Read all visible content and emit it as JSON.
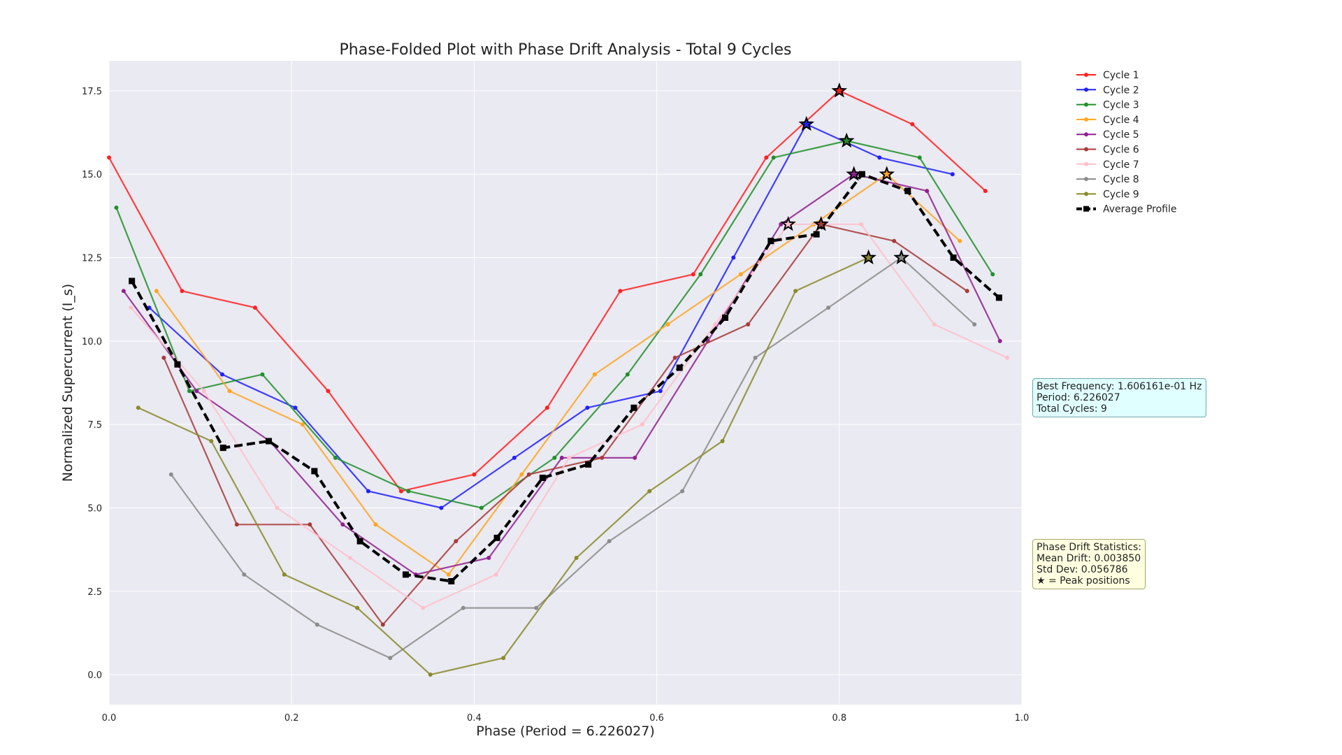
{
  "chart_data": {
    "type": "line",
    "title": "Phase-Folded Plot with Phase Drift Analysis - Total 9 Cycles",
    "xlabel": "Phase (Period = 6.226027)",
    "ylabel": "Normalized Supercurrent (I_s)",
    "xlim": [
      0,
      1
    ],
    "ylim": [
      -0.9,
      18.4
    ],
    "xticks": [
      0.0,
      0.2,
      0.4,
      0.6,
      0.8,
      1.0
    ],
    "xtick_labels": [
      "0.0",
      "0.2",
      "0.4",
      "0.6",
      "0.8",
      "1.0"
    ],
    "yticks": [
      0.0,
      2.5,
      5.0,
      7.5,
      10.0,
      12.5,
      15.0,
      17.5
    ],
    "ytick_labels": [
      "0.0",
      "2.5",
      "5.0",
      "7.5",
      "10.0",
      "12.5",
      "15.0",
      "17.5"
    ],
    "grid": true,
    "legend_position": "outside-top-right",
    "series": [
      {
        "name": "Cycle 1",
        "color": "#ff2020",
        "x": [
          0.0,
          0.08,
          0.16,
          0.24,
          0.32,
          0.4,
          0.48,
          0.56,
          0.64,
          0.72,
          0.8,
          0.88,
          0.96
        ],
        "y": [
          15.5,
          11.5,
          11.0,
          8.5,
          5.5,
          6.0,
          8.0,
          11.5,
          12.0,
          15.5,
          17.5,
          16.5,
          14.5
        ],
        "peak": [
          0.8,
          17.5
        ]
      },
      {
        "name": "Cycle 2",
        "color": "#2020ff",
        "x": [
          0.044,
          0.124,
          0.204,
          0.284,
          0.364,
          0.444,
          0.524,
          0.604,
          0.684,
          0.764,
          0.844,
          0.924
        ],
        "y": [
          11.0,
          9.0,
          8.0,
          5.5,
          5.0,
          6.5,
          8.0,
          8.5,
          12.5,
          16.5,
          15.5,
          15.0
        ],
        "peak": [
          0.764,
          16.5
        ]
      },
      {
        "name": "Cycle 3",
        "color": "#20902a",
        "x": [
          0.008,
          0.088,
          0.168,
          0.248,
          0.328,
          0.408,
          0.488,
          0.568,
          0.648,
          0.728,
          0.808,
          0.888,
          0.968
        ],
        "y": [
          14.0,
          8.5,
          9.0,
          6.5,
          5.5,
          5.0,
          6.5,
          9.0,
          12.0,
          15.5,
          16.0,
          15.5,
          12.0
        ],
        "peak": [
          0.808,
          16.0
        ]
      },
      {
        "name": "Cycle 4",
        "color": "#ffa520",
        "x": [
          0.052,
          0.132,
          0.212,
          0.292,
          0.372,
          0.452,
          0.532,
          0.612,
          0.692,
          0.772,
          0.852,
          0.932
        ],
        "y": [
          11.5,
          8.5,
          7.5,
          4.5,
          3.0,
          6.0,
          9.0,
          10.5,
          12.0,
          13.5,
          15.0,
          13.0
        ],
        "peak": [
          0.852,
          15.0
        ]
      },
      {
        "name": "Cycle 5",
        "color": "#902090",
        "x": [
          0.016,
          0.096,
          0.176,
          0.256,
          0.336,
          0.416,
          0.496,
          0.576,
          0.656,
          0.736,
          0.816,
          0.896,
          0.976
        ],
        "y": [
          11.5,
          8.5,
          7.0,
          4.5,
          3.0,
          3.5,
          6.5,
          6.5,
          10.0,
          13.5,
          15.0,
          14.5,
          10.0
        ],
        "peak": [
          0.816,
          15.0
        ]
      },
      {
        "name": "Cycle 6",
        "color": "#a83a3a",
        "x": [
          0.06,
          0.14,
          0.22,
          0.3,
          0.38,
          0.46,
          0.54,
          0.62,
          0.7,
          0.78,
          0.86,
          0.94
        ],
        "y": [
          9.5,
          4.5,
          4.5,
          1.5,
          4.0,
          6.0,
          6.5,
          9.5,
          10.5,
          13.5,
          13.0,
          11.5
        ],
        "peak": [
          0.78,
          13.5
        ]
      },
      {
        "name": "Cycle 7",
        "color": "#ffc0cb",
        "x": [
          0.024,
          0.104,
          0.184,
          0.264,
          0.344,
          0.424,
          0.504,
          0.584,
          0.664,
          0.744,
          0.824,
          0.904,
          0.984
        ],
        "y": [
          11.0,
          8.5,
          5.0,
          3.5,
          2.0,
          3.0,
          6.5,
          7.5,
          10.5,
          13.5,
          13.5,
          10.5,
          9.5
        ],
        "peak": [
          0.744,
          13.5
        ]
      },
      {
        "name": "Cycle 8",
        "color": "#8c8c8c",
        "x": [
          0.068,
          0.148,
          0.228,
          0.308,
          0.388,
          0.468,
          0.548,
          0.628,
          0.708,
          0.788,
          0.868,
          0.948
        ],
        "y": [
          6.0,
          3.0,
          1.5,
          0.5,
          2.0,
          2.0,
          4.0,
          5.5,
          9.5,
          11.0,
          12.5,
          10.5
        ],
        "peak": [
          0.868,
          12.5
        ]
      },
      {
        "name": "Cycle 9",
        "color": "#8a8a2a",
        "x": [
          0.032,
          0.112,
          0.192,
          0.272,
          0.352,
          0.432,
          0.512,
          0.592,
          0.672,
          0.752,
          0.832
        ],
        "y": [
          8.0,
          7.0,
          3.0,
          2.0,
          0.0,
          0.5,
          3.5,
          5.5,
          7.0,
          11.5,
          12.5
        ],
        "peak": [
          0.832,
          12.5
        ]
      },
      {
        "name": "Average Profile",
        "color": "#000000",
        "dashed": true,
        "x": [
          0.025,
          0.075,
          0.125,
          0.175,
          0.225,
          0.275,
          0.325,
          0.375,
          0.425,
          0.475,
          0.525,
          0.575,
          0.625,
          0.675,
          0.725,
          0.775,
          0.825,
          0.875,
          0.925,
          0.975
        ],
        "y": [
          11.8,
          9.3,
          6.8,
          7.0,
          6.1,
          4.0,
          3.0,
          2.8,
          4.1,
          5.9,
          6.3,
          8.0,
          9.2,
          10.7,
          13.0,
          13.2,
          15.0,
          14.5,
          12.5,
          11.3
        ]
      }
    ]
  },
  "info_box": {
    "line1": "Best Frequency: 1.606161e-01 Hz",
    "line2": "Period: 6.226027",
    "line3": "Total Cycles: 9"
  },
  "drift_box": {
    "line1": "Phase Drift Statistics:",
    "line2": "Mean Drift: 0.003850",
    "line3": "Std Dev: 0.056786",
    "line4": "★ = Peak positions"
  }
}
